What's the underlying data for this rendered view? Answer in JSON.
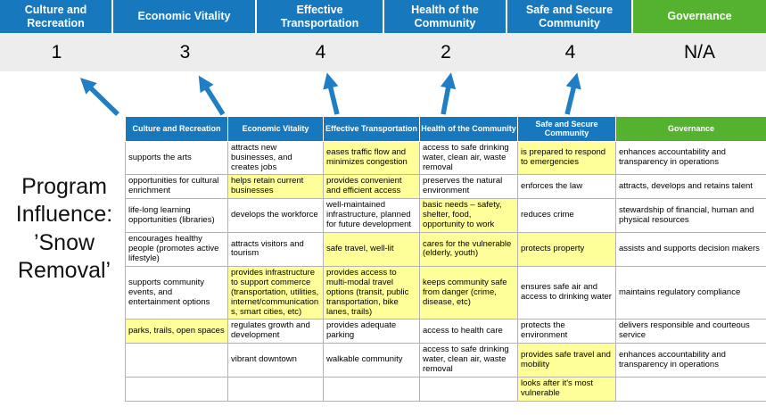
{
  "title": "Program Influence: ’Snow Removal’",
  "summary": {
    "headers": [
      "Culture and Recreation",
      "Economic Vitality",
      "Effective Transportation",
      "Health of the Community",
      "Safe and Secure Community",
      "Governance"
    ],
    "scores": [
      "1",
      "3",
      "4",
      "2",
      "4",
      "N/A"
    ]
  },
  "table": {
    "headers": [
      "Culture and Recreation",
      "Economic Vitality",
      "Effective Transportation",
      "Health of the Community",
      "Safe and Secure Community",
      "Governance"
    ],
    "rows": [
      [
        {
          "text": "supports the arts",
          "hl": false
        },
        {
          "text": "attracts new businesses, and creates jobs",
          "hl": false
        },
        {
          "text": "eases traffic flow and minimizes congestion",
          "hl": true
        },
        {
          "text": "access to safe drinking water, clean air, waste removal",
          "hl": false
        },
        {
          "text": "is prepared to respond to emergencies",
          "hl": true
        },
        {
          "text": "enhances accountability and transparency in operations",
          "hl": false
        }
      ],
      [
        {
          "text": "opportunities for cultural enrichment",
          "hl": false
        },
        {
          "text": "helps retain current businesses",
          "hl": true
        },
        {
          "text": "provides convenient and efficient access",
          "hl": true
        },
        {
          "text": "preserves the natural environment",
          "hl": false
        },
        {
          "text": "enforces the law",
          "hl": false
        },
        {
          "text": "attracts, develops and retains talent",
          "hl": false
        }
      ],
      [
        {
          "text": "life-long learning opportunities (libraries)",
          "hl": false
        },
        {
          "text": "develops the workforce",
          "hl": false
        },
        {
          "text": "well-maintained infrastructure, planned for future development",
          "hl": false
        },
        {
          "text": "basic needs – safety, shelter, food, opportunity to work",
          "hl": true
        },
        {
          "text": "reduces crime",
          "hl": false
        },
        {
          "text": "stewardship of financial, human and physical resources",
          "hl": false
        }
      ],
      [
        {
          "text": "encourages healthy people (promotes active lifestyle)",
          "hl": false
        },
        {
          "text": "attracts visitors and tourism",
          "hl": false
        },
        {
          "text": "safe travel, well-lit",
          "hl": true
        },
        {
          "text": "cares for the vulnerable (elderly, youth)",
          "hl": true
        },
        {
          "text": "protects property",
          "hl": true
        },
        {
          "text": "assists and supports decision makers",
          "hl": false
        }
      ],
      [
        {
          "text": "supports community events, and entertainment options",
          "hl": false
        },
        {
          "text": "provides infrastructure to support commerce (transportation, utilities, internet/communications, smart cities, etc)",
          "hl": true
        },
        {
          "text": "provides access to multi-modal travel options (transit, public transportation, bike lanes, trails)",
          "hl": true
        },
        {
          "text": "keeps community safe from danger (crime, disease, etc)",
          "hl": true
        },
        {
          "text": "ensures safe air and access to drinking water",
          "hl": false
        },
        {
          "text": "maintains regulatory compliance",
          "hl": false
        }
      ],
      [
        {
          "text": "parks, trails, open spaces",
          "hl": true
        },
        {
          "text": "regulates growth and development",
          "hl": false
        },
        {
          "text": "provides adequate parking",
          "hl": false
        },
        {
          "text": "access to health care",
          "hl": false
        },
        {
          "text": "protects the environment",
          "hl": false
        },
        {
          "text": "delivers responsible and courteous service",
          "hl": false
        }
      ],
      [
        {
          "text": "",
          "hl": false
        },
        {
          "text": "vibrant downtown",
          "hl": false
        },
        {
          "text": "walkable community",
          "hl": false
        },
        {
          "text": "access to safe drinking water, clean air, waste removal",
          "hl": false
        },
        {
          "text": "provides safe travel and mobility",
          "hl": true
        },
        {
          "text": "enhances accountability and transparency in operations",
          "hl": false
        }
      ],
      [
        {
          "text": "",
          "hl": false
        },
        {
          "text": "",
          "hl": false
        },
        {
          "text": "",
          "hl": false
        },
        {
          "text": "",
          "hl": false
        },
        {
          "text": "looks after it's most vulnerable",
          "hl": true
        },
        {
          "text": "",
          "hl": false
        }
      ]
    ]
  },
  "colors": {
    "header_blue": "#1878BE",
    "header_green": "#55B22E",
    "highlight_yellow": "#FFFF99",
    "score_band_gray": "#EDEDED",
    "arrow_blue": "#1F7EC4"
  }
}
